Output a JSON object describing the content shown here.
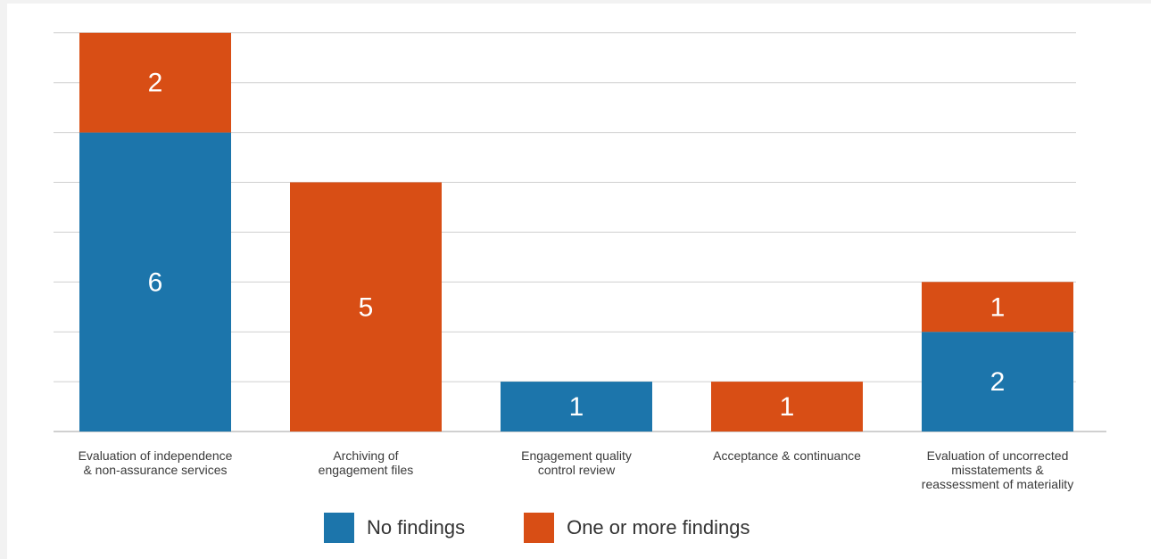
{
  "chart_data": {
    "type": "bar",
    "stacked": true,
    "categories": [
      "Evaluation of independence\n& non-assurance services",
      "Archiving of\nengagement files",
      "Engagement quality\ncontrol review",
      "Acceptance & continuance",
      "Evaluation of uncorrected\nmisstatements &\nreassessment of materiality"
    ],
    "series": [
      {
        "name": "No findings",
        "color": "#1c75ab",
        "values": [
          6,
          0,
          1,
          0,
          2
        ]
      },
      {
        "name": "One or more findings",
        "color": "#d84e15",
        "values": [
          2,
          5,
          0,
          1,
          1
        ]
      }
    ],
    "ylim": [
      0,
      8
    ],
    "grid": true,
    "legend_position": "bottom"
  },
  "legend": {
    "no_findings": "No findings",
    "one_or_more_findings": "One or more findings"
  }
}
